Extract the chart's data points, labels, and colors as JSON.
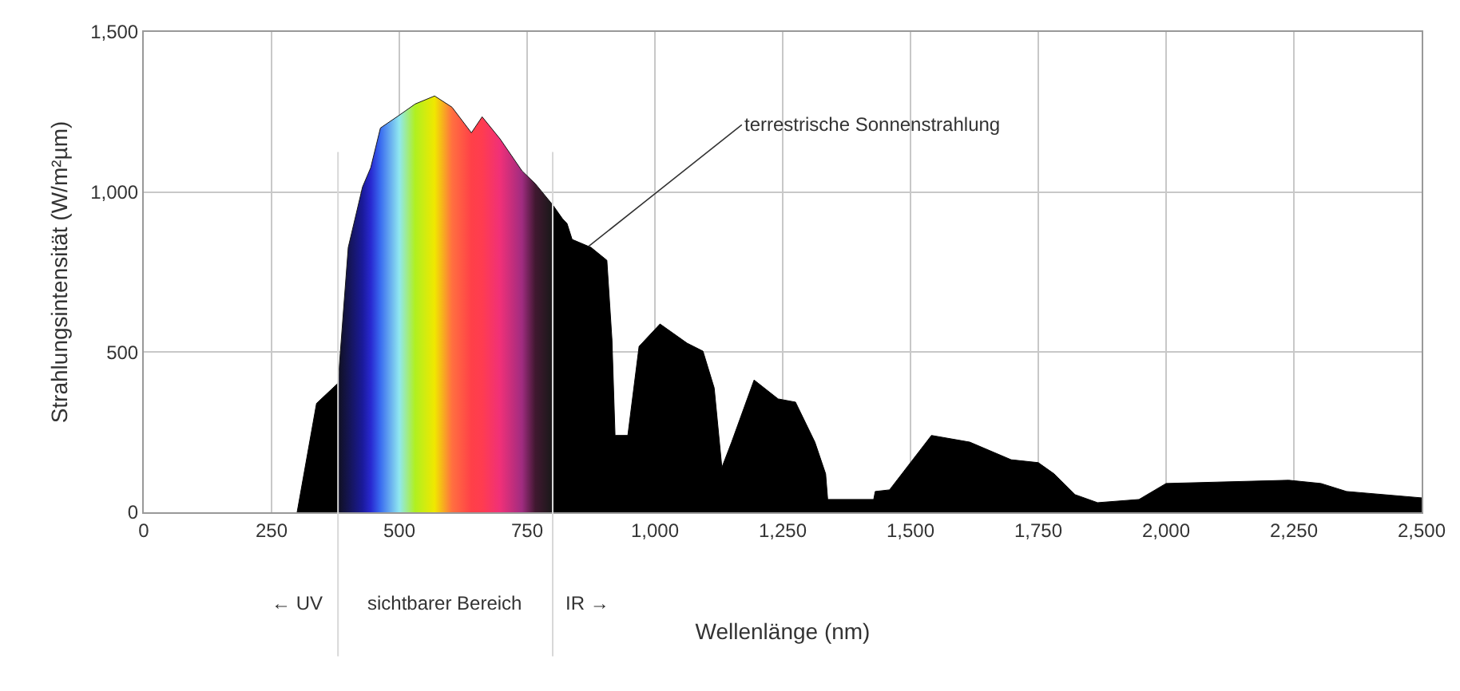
{
  "chart_data": {
    "type": "area",
    "xlabel": "Wellenlänge (nm)",
    "ylabel": "Strahlungsintensität (W/m²µm)",
    "series": [
      {
        "color": "#000000",
        "x": [
          300,
          338,
          380
        ],
        "values": [
          0,
          340,
          403
        ]
      },
      {
        "color": "#000000",
        "colors": [
          "#101020",
          "#141450",
          "#1a1a9a",
          "#2828d0",
          "#3a6cf0",
          "#90e8f0",
          "#b0f020",
          "#f0e800",
          "#ff7040",
          "#ff4048",
          "#ff3c50",
          "#f03078",
          "#a02c80",
          "#401830",
          "#181818"
        ],
        "x": [
          380,
          400,
          428,
          444,
          463,
          500,
          531,
          569,
          603,
          641,
          662,
          697,
          740,
          766,
          800
        ],
        "values": [
          403,
          827,
          1016,
          1076,
          1200,
          1240,
          1275,
          1300,
          1265,
          1185,
          1235,
          1166,
          1066,
          1026,
          960
        ]
      },
      {
        "color": "#000000",
        "x": [
          800,
          819,
          828,
          838,
          875,
          906,
          916,
          922,
          947,
          969,
          1010,
          1063,
          1094,
          1116,
          1131,
          1150,
          1194,
          1241,
          1275,
          1313,
          1334,
          1338,
          1428,
          1431,
          1459,
          1541,
          1616,
          1697,
          1750,
          1781,
          1822,
          1866,
          1947,
          2000,
          2240,
          2303,
          2353,
          2500
        ],
        "values": [
          960,
          917,
          902,
          852,
          827,
          787,
          538,
          240,
          240,
          518,
          588,
          528,
          503,
          388,
          140,
          219,
          413,
          354,
          344,
          219,
          120,
          40,
          40,
          65,
          70,
          240,
          219,
          164,
          155,
          120,
          55,
          30,
          40,
          90,
          100,
          90,
          65,
          45
        ]
      }
    ],
    "xlim": [
      0,
      2500
    ],
    "ylim": [
      0,
      1500
    ],
    "xticks": [
      0,
      250,
      500,
      750,
      {
        "value": 1000,
        "label": "1,000"
      },
      {
        "value": 1250,
        "label": "1,250"
      },
      {
        "value": 1500,
        "label": "1,500"
      },
      {
        "value": 1750,
        "label": "1,750"
      },
      {
        "value": 2000,
        "label": "2,000"
      },
      {
        "value": 2250,
        "label": "2,250"
      },
      {
        "value": 2500,
        "label": "2,500"
      }
    ],
    "yticks": [
      0,
      500,
      {
        "value": 1000,
        "label": "1,000"
      },
      {
        "value": 1500,
        "label": "1,500"
      }
    ],
    "grid": true,
    "ref_lines": [
      {
        "axis": "x",
        "value": 380,
        "color": "#d8d8d8"
      },
      {
        "axis": "x",
        "value": 800,
        "color": "#d8d8d8"
      }
    ],
    "annotations": [
      {
        "text": "terrestrische Sonnenstrahlung",
        "x": 870,
        "y": 830
      },
      "← UV",
      "sichtbarer Bereich",
      "IR →"
    ]
  }
}
